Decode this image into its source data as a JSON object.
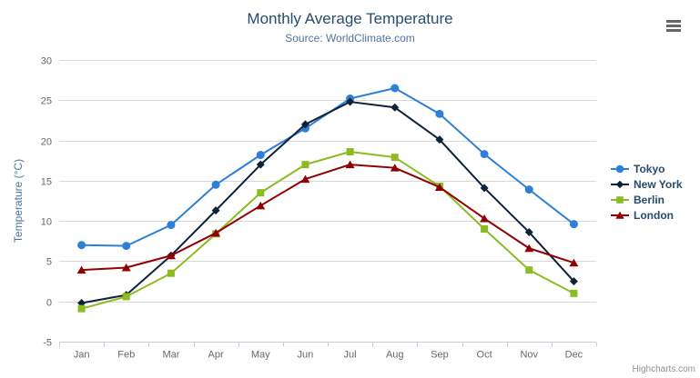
{
  "chart": {
    "title": "Monthly Average Temperature",
    "subtitle": "Source: WorldClimate.com",
    "y_axis_title": "Temperature (°C)",
    "credit": "Highcharts.com"
  },
  "chart_data": {
    "type": "line",
    "title": "Monthly Average Temperature",
    "subtitle": "Source: WorldClimate.com",
    "categories": [
      "Jan",
      "Feb",
      "Mar",
      "Apr",
      "May",
      "Jun",
      "Jul",
      "Aug",
      "Sep",
      "Oct",
      "Nov",
      "Dec"
    ],
    "series": [
      {
        "name": "Tokyo",
        "marker": "circle",
        "color": "#2f7ed8",
        "values": [
          7.0,
          6.9,
          9.5,
          14.5,
          18.2,
          21.5,
          25.2,
          26.5,
          23.3,
          18.3,
          13.9,
          9.6
        ]
      },
      {
        "name": "New York",
        "marker": "diamond",
        "color": "#0d233a",
        "values": [
          -0.2,
          0.8,
          5.7,
          11.3,
          17.0,
          22.0,
          24.8,
          24.1,
          20.1,
          14.1,
          8.6,
          2.5
        ]
      },
      {
        "name": "Berlin",
        "marker": "square",
        "color": "#8bbc21",
        "values": [
          -0.9,
          0.6,
          3.5,
          8.4,
          13.5,
          17.0,
          18.6,
          17.9,
          14.3,
          9.0,
          3.9,
          1.0
        ]
      },
      {
        "name": "London",
        "marker": "triangle",
        "color": "#910000",
        "values": [
          3.9,
          4.2,
          5.7,
          8.5,
          11.9,
          15.2,
          17.0,
          16.6,
          14.2,
          10.3,
          6.6,
          4.8
        ]
      }
    ],
    "xlabel": "",
    "ylabel": "Temperature (°C)",
    "ylim": [
      -5,
      30
    ],
    "ytick_interval": 5,
    "yticks": [
      -5,
      0,
      5,
      10,
      15,
      20,
      25,
      30
    ],
    "grid": true,
    "legend_position": "right",
    "colors": {
      "grid_line": "#d8d8d8",
      "axis_line": "#c0d0e0",
      "axis_label": "#666666",
      "title": "#274b6d",
      "subtitle": "#4d759e",
      "legend_text": "#274b6d",
      "credit_text": "#909090",
      "background": "#ffffff"
    }
  }
}
